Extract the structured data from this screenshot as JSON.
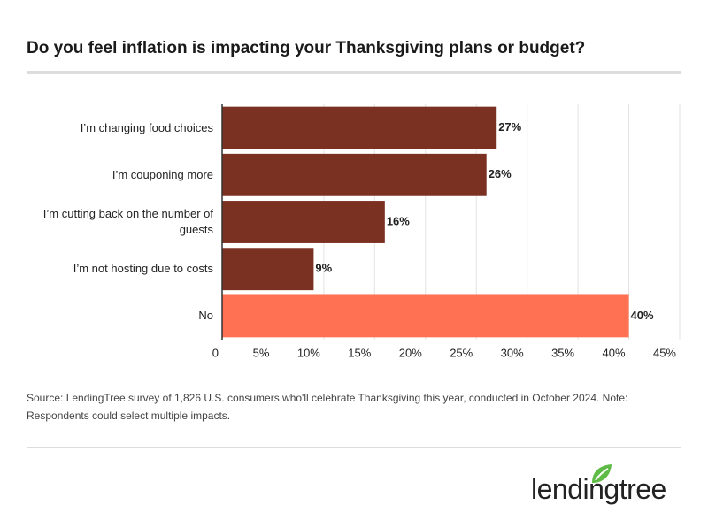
{
  "chart_data": {
    "type": "hbar",
    "title": "Do you feel inflation is impacting your Thanksgiving plans or budget?",
    "categories": [
      "I’m changing food choices",
      "I’m couponing more",
      "I’m cutting back on the number of guests",
      "I’m not hosting due to costs",
      "No"
    ],
    "values": [
      27,
      26,
      16,
      9,
      40
    ],
    "value_labels": [
      "27%",
      "26%",
      "16%",
      "9%",
      "40%"
    ],
    "colors": [
      "#7b3121",
      "#7b3121",
      "#7b3121",
      "#7b3121",
      "#ff7152"
    ],
    "xlim": [
      0,
      45
    ],
    "xticks": [
      0,
      {
        "value": 5,
        "label": "5%"
      },
      {
        "value": 10,
        "label": "10%"
      },
      {
        "value": 15,
        "label": "15%"
      },
      {
        "value": 20,
        "label": "20%"
      },
      {
        "value": 25,
        "label": "25%"
      },
      {
        "value": 30,
        "label": "30%"
      },
      {
        "value": 35,
        "label": "35%"
      },
      {
        "value": 40,
        "label": "40%"
      },
      {
        "value": 45,
        "label": "45%"
      }
    ],
    "grid": true,
    "source": "Source: LendingTree survey of 1,826 U.S. consumers who'll celebrate Thanksgiving this year, conducted in October 2024. Note: Respondents could select multiple impacts."
  },
  "logo": "lendingtree"
}
